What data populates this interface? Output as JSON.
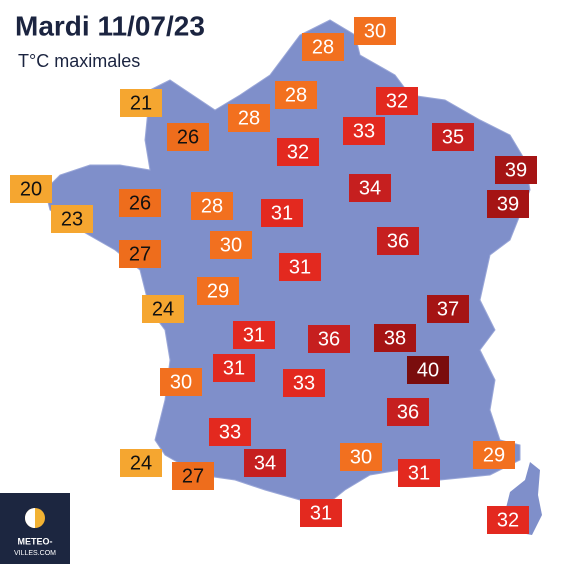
{
  "header": {
    "title": "Mardi 11/07/23",
    "subtitle": "T°C maximales"
  },
  "labels": [
    {
      "text": "30",
      "color": "#f2701f"
    },
    {
      "text": "28",
      "color": "#f2701f"
    },
    {
      "text": "28",
      "color": "#f2701f"
    },
    {
      "text": "32",
      "color": "#e3291f"
    },
    {
      "text": "21",
      "color": "#f5a630"
    },
    {
      "text": "26",
      "color": "#ee6d1c"
    },
    {
      "text": "28",
      "color": "#f2701f"
    },
    {
      "text": "33",
      "color": "#e3291f"
    },
    {
      "text": "35",
      "color": "#c61f1f"
    },
    {
      "text": "32",
      "color": "#e3291f"
    },
    {
      "text": "39",
      "color": "#a51414"
    },
    {
      "text": "34",
      "color": "#c61f1f"
    },
    {
      "text": "20",
      "color": "#f5a630"
    },
    {
      "text": "26",
      "color": "#ee6d1c"
    },
    {
      "text": "28",
      "color": "#f2701f"
    },
    {
      "text": "31",
      "color": "#e3291f"
    },
    {
      "text": "39",
      "color": "#a51414"
    },
    {
      "text": "23",
      "color": "#f5a630"
    },
    {
      "text": "30",
      "color": "#f2701f"
    },
    {
      "text": "36",
      "color": "#c61f1f"
    },
    {
      "text": "27",
      "color": "#ee6d1c"
    },
    {
      "text": "31",
      "color": "#e3291f"
    },
    {
      "text": "29",
      "color": "#f2701f"
    },
    {
      "text": "24",
      "color": "#f5a630"
    },
    {
      "text": "37",
      "color": "#a51414"
    },
    {
      "text": "31",
      "color": "#e3291f"
    },
    {
      "text": "36",
      "color": "#c61f1f"
    },
    {
      "text": "38",
      "color": "#a51414"
    },
    {
      "text": "40",
      "color": "#7a0d0d"
    },
    {
      "text": "31",
      "color": "#e3291f"
    },
    {
      "text": "30",
      "color": "#f2701f"
    },
    {
      "text": "33",
      "color": "#e3291f"
    },
    {
      "text": "36",
      "color": "#c61f1f"
    },
    {
      "text": "33",
      "color": "#e3291f"
    },
    {
      "text": "29",
      "color": "#f2701f"
    },
    {
      "text": "24",
      "color": "#f5a630"
    },
    {
      "text": "34",
      "color": "#c61f1f"
    },
    {
      "text": "30",
      "color": "#f2701f"
    },
    {
      "text": "27",
      "color": "#ee6d1c"
    },
    {
      "text": "31",
      "color": "#e3291f"
    },
    {
      "text": "31",
      "color": "#e3291f"
    },
    {
      "text": "32",
      "color": "#e3291f"
    }
  ],
  "logo": {
    "line1": "METEO-",
    "line2": "VILLES.COM"
  }
}
